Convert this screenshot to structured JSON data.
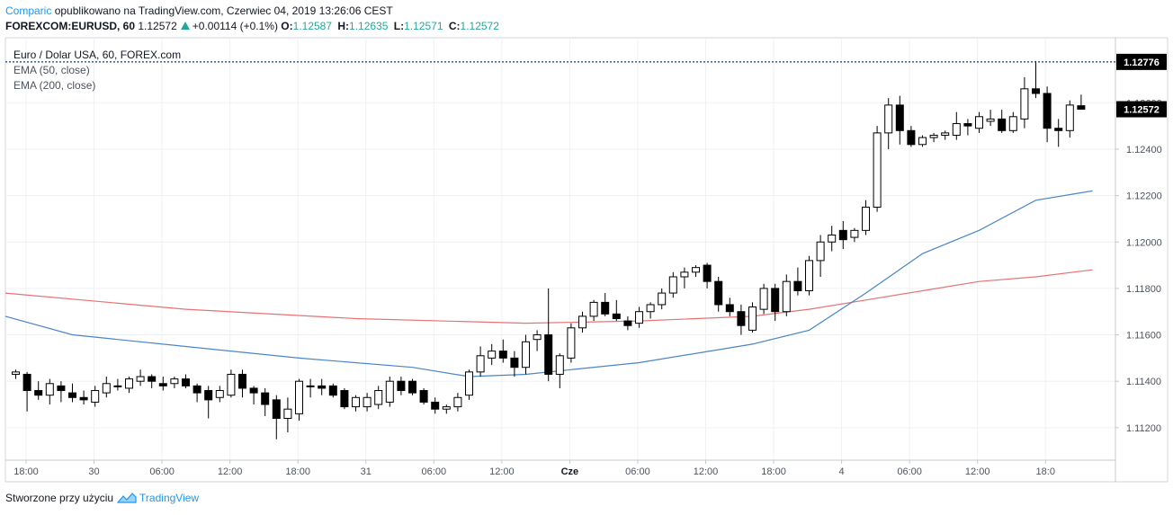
{
  "header": {
    "author": "Comparic",
    "published_text": "opublikowano na TradingView.com, Czerwiec 04, 2019 13:26:06 CEST",
    "symbol": "FOREXCOM:EURUSD, 60",
    "last": "1.12572",
    "change": "+0.00114 (+0.1%)",
    "open_label": "O:",
    "open": "1.12587",
    "high_label": "H:",
    "high": "1.12635",
    "low_label": "L:",
    "low": "1.12571",
    "close_label": "C:",
    "close": "1.12572"
  },
  "legend": {
    "title": "Euro / Dolar USA, 60, FOREX.com",
    "ema50": "EMA (50, close)",
    "ema200": "EMA (200, close)"
  },
  "footer": {
    "text": "Stworzone przy użyciu",
    "brand": "TradingView"
  },
  "colors": {
    "up_body": "#ffffff",
    "down_body": "#000000",
    "wick": "#000000",
    "ema50": "#4a86c5",
    "ema200": "#e57373",
    "badge": "#000000",
    "dotted_line": "#1a3a6b",
    "grid": "#eef0f4",
    "axis": "#c5c8ce",
    "accent": "#2196f3"
  },
  "chart_data": {
    "type": "candlestick",
    "y_axis_ticks": [
      1.112,
      1.114,
      1.116,
      1.118,
      1.12,
      1.122,
      1.124,
      1.126
    ],
    "ylim": [
      1.1106,
      1.1288
    ],
    "x_axis_labels": [
      "18:00",
      "30",
      "06:00",
      "12:00",
      "18:00",
      "31",
      "06:00",
      "12:00",
      "Cze",
      "06:00",
      "12:00",
      "18:00",
      "4",
      "06:00",
      "12:00",
      "18:0"
    ],
    "bold_x_labels": [
      "Cze"
    ],
    "price_badges": [
      {
        "value": "1.12776",
        "style": "dotted-line"
      },
      {
        "value": "1.12572",
        "style": "last-price"
      }
    ],
    "start": "2019-05-29 17:00",
    "interval_minutes": 60,
    "candles": [
      [
        1.1143,
        1.1145,
        1.1141,
        1.1144
      ],
      [
        1.1143,
        1.1144,
        1.1127,
        1.1136
      ],
      [
        1.1136,
        1.114,
        1.1132,
        1.1134
      ],
      [
        1.1134,
        1.1141,
        1.113,
        1.1139
      ],
      [
        1.1138,
        1.114,
        1.1131,
        1.1136
      ],
      [
        1.1135,
        1.1139,
        1.1131,
        1.1133
      ],
      [
        1.1133,
        1.1136,
        1.113,
        1.1132
      ],
      [
        1.1131,
        1.1138,
        1.1129,
        1.1136
      ],
      [
        1.1135,
        1.1142,
        1.1133,
        1.1139
      ],
      [
        1.1138,
        1.1141,
        1.1136,
        1.1138
      ],
      [
        1.1137,
        1.1142,
        1.1135,
        1.1141
      ],
      [
        1.114,
        1.1145,
        1.1138,
        1.1142
      ],
      [
        1.1142,
        1.1143,
        1.1137,
        1.114
      ],
      [
        1.1139,
        1.1142,
        1.1136,
        1.1138
      ],
      [
        1.1139,
        1.1142,
        1.1137,
        1.1141
      ],
      [
        1.1141,
        1.1143,
        1.1137,
        1.1138
      ],
      [
        1.1138,
        1.1139,
        1.1131,
        1.1135
      ],
      [
        1.1136,
        1.1138,
        1.1124,
        1.1132
      ],
      [
        1.1133,
        1.1138,
        1.1131,
        1.1136
      ],
      [
        1.1134,
        1.1145,
        1.1133,
        1.1143
      ],
      [
        1.1143,
        1.1145,
        1.1133,
        1.1137
      ],
      [
        1.1137,
        1.1138,
        1.113,
        1.1135
      ],
      [
        1.1135,
        1.1137,
        1.1125,
        1.113
      ],
      [
        1.1132,
        1.1134,
        1.1115,
        1.1124
      ],
      [
        1.1124,
        1.1133,
        1.1118,
        1.1128
      ],
      [
        1.1126,
        1.1141,
        1.1123,
        1.114
      ],
      [
        1.1138,
        1.1141,
        1.1133,
        1.1138
      ],
      [
        1.1138,
        1.1141,
        1.1134,
        1.1137
      ],
      [
        1.1138,
        1.1139,
        1.1133,
        1.1134
      ],
      [
        1.1136,
        1.1137,
        1.1128,
        1.1129
      ],
      [
        1.1129,
        1.1134,
        1.1127,
        1.1133
      ],
      [
        1.1129,
        1.1135,
        1.1127,
        1.1133
      ],
      [
        1.113,
        1.1138,
        1.1128,
        1.1136
      ],
      [
        1.1131,
        1.1142,
        1.1129,
        1.114
      ],
      [
        1.114,
        1.1142,
        1.1134,
        1.1136
      ],
      [
        1.114,
        1.1141,
        1.1134,
        1.1135
      ],
      [
        1.1136,
        1.1137,
        1.113,
        1.1131
      ],
      [
        1.1131,
        1.1133,
        1.1126,
        1.1128
      ],
      [
        1.1128,
        1.113,
        1.1126,
        1.1129
      ],
      [
        1.1129,
        1.1135,
        1.1127,
        1.1133
      ],
      [
        1.1134,
        1.1145,
        1.1132,
        1.1144
      ],
      [
        1.1144,
        1.1155,
        1.1142,
        1.1151
      ],
      [
        1.115,
        1.1156,
        1.1147,
        1.1153
      ],
      [
        1.1153,
        1.1158,
        1.1148,
        1.115
      ],
      [
        1.115,
        1.1153,
        1.1142,
        1.1146
      ],
      [
        1.1146,
        1.116,
        1.1143,
        1.1157
      ],
      [
        1.1158,
        1.1162,
        1.1153,
        1.116
      ],
      [
        1.116,
        1.118,
        1.114,
        1.1143
      ],
      [
        1.1143,
        1.1152,
        1.1137,
        1.1151
      ],
      [
        1.115,
        1.1165,
        1.1148,
        1.1163
      ],
      [
        1.1163,
        1.117,
        1.1161,
        1.1168
      ],
      [
        1.1168,
        1.1175,
        1.1166,
        1.1174
      ],
      [
        1.1174,
        1.1178,
        1.1168,
        1.1169
      ],
      [
        1.1169,
        1.1175,
        1.1166,
        1.1167
      ],
      [
        1.1166,
        1.1168,
        1.1162,
        1.1164
      ],
      [
        1.1165,
        1.1172,
        1.1163,
        1.117
      ],
      [
        1.117,
        1.1174,
        1.1167,
        1.1173
      ],
      [
        1.1173,
        1.118,
        1.1171,
        1.1178
      ],
      [
        1.1178,
        1.1187,
        1.1176,
        1.1185
      ],
      [
        1.1185,
        1.1189,
        1.118,
        1.1187
      ],
      [
        1.1187,
        1.119,
        1.1185,
        1.1189
      ],
      [
        1.119,
        1.1191,
        1.118,
        1.1183
      ],
      [
        1.1183,
        1.1185,
        1.117,
        1.1173
      ],
      [
        1.1173,
        1.1176,
        1.1168,
        1.117
      ],
      [
        1.117,
        1.1173,
        1.116,
        1.1164
      ],
      [
        1.1162,
        1.1174,
        1.1161,
        1.1172
      ],
      [
        1.1171,
        1.1182,
        1.1169,
        1.118
      ],
      [
        1.118,
        1.1182,
        1.1166,
        1.117
      ],
      [
        1.117,
        1.1186,
        1.1168,
        1.1183
      ],
      [
        1.1183,
        1.1189,
        1.1177,
        1.1179
      ],
      [
        1.1179,
        1.1194,
        1.1177,
        1.1192
      ],
      [
        1.1192,
        1.1203,
        1.1185,
        1.12
      ],
      [
        1.12,
        1.1207,
        1.1196,
        1.1203
      ],
      [
        1.1205,
        1.1209,
        1.1197,
        1.1201
      ],
      [
        1.1202,
        1.1206,
        1.12,
        1.1205
      ],
      [
        1.1205,
        1.1218,
        1.1203,
        1.1215
      ],
      [
        1.1215,
        1.125,
        1.1213,
        1.1247
      ],
      [
        1.1247,
        1.1262,
        1.124,
        1.1259
      ],
      [
        1.1259,
        1.1263,
        1.1242,
        1.1248
      ],
      [
        1.1248,
        1.125,
        1.1241,
        1.1242
      ],
      [
        1.1242,
        1.1246,
        1.1241,
        1.1245
      ],
      [
        1.1245,
        1.1247,
        1.1243,
        1.1246
      ],
      [
        1.1246,
        1.1248,
        1.1244,
        1.1247
      ],
      [
        1.1246,
        1.1256,
        1.1244,
        1.1251
      ],
      [
        1.1251,
        1.1253,
        1.1246,
        1.125
      ],
      [
        1.1249,
        1.1256,
        1.1247,
        1.1254
      ],
      [
        1.1252,
        1.1257,
        1.125,
        1.1253
      ],
      [
        1.1253,
        1.1257,
        1.1247,
        1.1248
      ],
      [
        1.1248,
        1.1256,
        1.1247,
        1.1254
      ],
      [
        1.1253,
        1.1271,
        1.1249,
        1.1266
      ],
      [
        1.1266,
        1.1278,
        1.1262,
        1.1264
      ],
      [
        1.1264,
        1.1267,
        1.1243,
        1.1249
      ],
      [
        1.1249,
        1.1253,
        1.1241,
        1.1248
      ],
      [
        1.1248,
        1.1261,
        1.1245,
        1.1259
      ],
      [
        1.12587,
        1.12635,
        1.12571,
        1.12572
      ]
    ],
    "ema50": [
      [
        -1,
        1.1168
      ],
      [
        5,
        1.116
      ],
      [
        15,
        1.1155
      ],
      [
        25,
        1.115
      ],
      [
        35,
        1.1146
      ],
      [
        40,
        1.1142
      ],
      [
        45,
        1.1143
      ],
      [
        55,
        1.1148
      ],
      [
        65,
        1.1156
      ],
      [
        70,
        1.1162
      ],
      [
        75,
        1.1178
      ],
      [
        80,
        1.1195
      ],
      [
        85,
        1.1205
      ],
      [
        90,
        1.1218
      ],
      [
        95,
        1.1222
      ]
    ],
    "ema200": [
      [
        -1,
        1.1178
      ],
      [
        15,
        1.1171
      ],
      [
        30,
        1.1167
      ],
      [
        45,
        1.1165
      ],
      [
        55,
        1.1166
      ],
      [
        65,
        1.1168
      ],
      [
        70,
        1.1171
      ],
      [
        75,
        1.1175
      ],
      [
        80,
        1.1179
      ],
      [
        85,
        1.1183
      ],
      [
        90,
        1.1185
      ],
      [
        95,
        1.1188
      ]
    ]
  }
}
